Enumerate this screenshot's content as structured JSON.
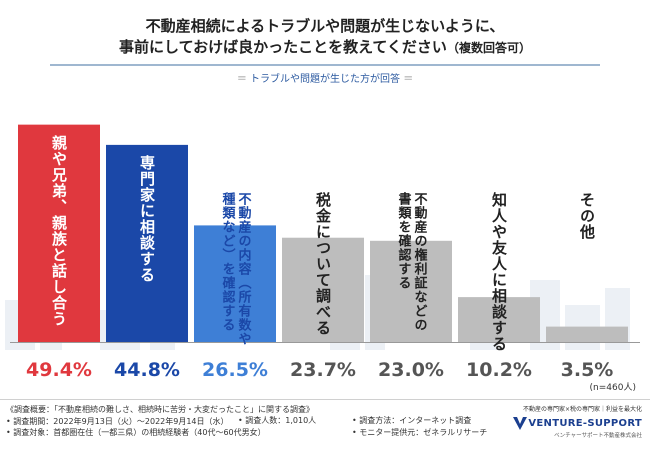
{
  "header": {
    "title_line1": "不動産相続によるトラブルや問題が生じないように、",
    "title_line2": "事前にしておけば良かったことを教えてください",
    "title_note": "（複数回答可）",
    "subtitle": "トラブルや問題が生じた方が回答",
    "subtitle_mark": "＝"
  },
  "chart_data": {
    "type": "bar",
    "title": "不動産相続によるトラブルや問題が生じないように、事前にしておけば良かったことを教えてください（複数回答可）",
    "ylim": [
      0,
      55
    ],
    "unit": "%",
    "categories": [
      [
        "親や兄弟、親族と話し合う"
      ],
      [
        "専門家に相談する"
      ],
      [
        "不動産の内容（所有数や",
        "種類など）を確認する"
      ],
      [
        "税金について調べる"
      ],
      [
        "不動産の権利証などの",
        "書類を確認する"
      ],
      [
        "知人や友人に相談する"
      ],
      [
        "その他"
      ]
    ],
    "values": [
      49.4,
      44.8,
      26.5,
      23.7,
      23.0,
      10.2,
      3.5
    ],
    "value_labels": [
      "49.4%",
      "44.8%",
      "26.5%",
      "23.7%",
      "23.0%",
      "10.2%",
      "3.5%"
    ],
    "colors": [
      "#e0383e",
      "#1b48a8",
      "#3e7fd6",
      "#bdbdbd",
      "#bdbdbd",
      "#bdbdbd",
      "#bdbdbd"
    ],
    "label_colors": [
      "#e0383e",
      "#1b48a8",
      "#3e7fd6",
      "#555555",
      "#555555",
      "#555555",
      "#555555"
    ],
    "text_colors": [
      "#ffffff",
      "#ffffff",
      "#1b48a8",
      "#222222",
      "#222222",
      "#222222",
      "#222222"
    ],
    "n_label": "(n=460人)"
  },
  "footer": {
    "overview": "《調査概要：「不動産相続の難しさ、相続時に苦労・大変だったこと」に関する調査》",
    "period": "• 調査期間：2022年9月13日（火）〜2022年9月14日（水）",
    "target": "• 調査対象：首都圏在住（一都三県）の相続経験者（40代〜60代男女）",
    "respondents": "• 調査人数：1,010人",
    "method": "• 調査方法：インターネット調査",
    "provider": "• モニター提供元：ゼネラルリサーチ"
  },
  "brand": {
    "tagline": "不動産の専門家×税の専門家｜利益を最大化",
    "name": "VENTURE-SUPPORT",
    "sub": "ベンチャーサポート不動産株式会社"
  }
}
